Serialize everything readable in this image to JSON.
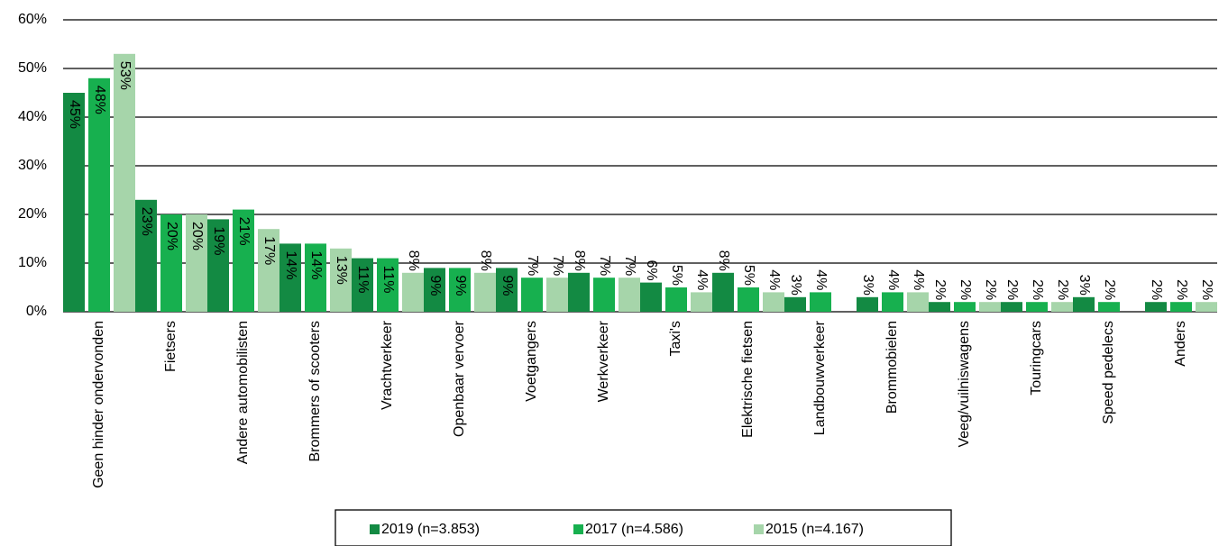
{
  "chart_data": {
    "type": "bar",
    "categories": [
      "Geen hinder ondervonden",
      "Fietsers",
      "Andere automobilisten",
      "Brommers of scooters",
      "Vrachtverkeer",
      "Openbaar vervoer",
      "Voetgangers",
      "Werkverkeer",
      "Taxi's",
      "Elektrische fietsen",
      "Landbouwverkeer",
      "Brommobielen",
      "Veeg/vuilniswagens",
      "Touringcars",
      "Speed pedelecs",
      "Anders"
    ],
    "series": [
      {
        "name": "2019 (n=3.853)",
        "color": "#138a43",
        "values": [
          45,
          23,
          19,
          14,
          11,
          9,
          9,
          8,
          6,
          8,
          3,
          3,
          2,
          2,
          3,
          2
        ],
        "value_labels": [
          "45%",
          "23%",
          "19%",
          "14%",
          "11%",
          "9%",
          "9%",
          "8%",
          "6%",
          "8%",
          "3%",
          "3%",
          "2%",
          "2%",
          "3%",
          "2%"
        ]
      },
      {
        "name": "2017 (n=4.586)",
        "color": "#17b04f",
        "values": [
          48,
          20,
          21,
          14,
          11,
          9,
          7,
          7,
          5,
          5,
          4,
          4,
          2,
          2,
          2,
          2
        ],
        "value_labels": [
          "48%",
          "20%",
          "21%",
          "14%",
          "11%",
          "9%",
          "7%",
          "7%",
          "5%",
          "5%",
          "4%",
          "4%",
          "2%",
          "2%",
          "2%",
          "2%"
        ]
      },
      {
        "name": "2015 (n=4.167)",
        "color": "#a6d5aa",
        "values": [
          53,
          20,
          17,
          13,
          8,
          8,
          7,
          7,
          4,
          4,
          null,
          4,
          2,
          2,
          null,
          2
        ],
        "value_labels": [
          "53%",
          "20%",
          "17%",
          "13%",
          "8%",
          "8%",
          "7%",
          "7%",
          "4%",
          "4%",
          null,
          "4%",
          "2%",
          "2%",
          null,
          "2%"
        ]
      }
    ],
    "ylim": [
      0,
      60
    ],
    "yticks": [
      {
        "value": 0,
        "label": "0%"
      },
      {
        "value": 10,
        "label": "10%"
      },
      {
        "value": 20,
        "label": "20%"
      },
      {
        "value": 30,
        "label": "30%"
      },
      {
        "value": 40,
        "label": "40%"
      },
      {
        "value": 50,
        "label": "50%"
      },
      {
        "value": 60,
        "label": "60%"
      }
    ],
    "grid": true,
    "legend": "bottom"
  }
}
